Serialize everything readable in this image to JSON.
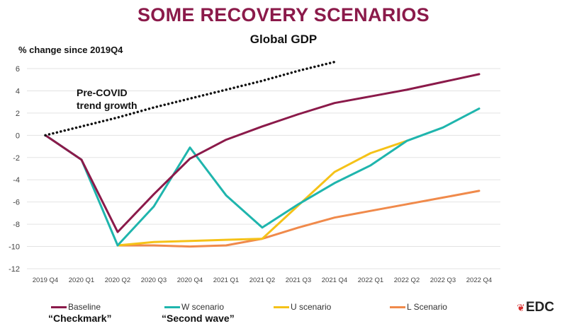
{
  "header": {
    "title": "SOME RECOVERY SCENARIOS",
    "subtitle": "Global GDP",
    "ylabel": "% change since 2019Q4"
  },
  "annotations": {
    "trend_line1": "Pre-COVID",
    "trend_line2": "trend growth"
  },
  "nicknames": {
    "baseline": "“Checkmark”",
    "w": "“Second wave”"
  },
  "logo": {
    "text": "EDC",
    "icon": "maple-leaf-icon"
  },
  "chart_data": {
    "type": "line",
    "title": "Global GDP",
    "ylabel": "% change since 2019Q4",
    "xlabel": "",
    "ylim": [
      -12,
      6
    ],
    "yticks": [
      -12,
      -10,
      -8,
      -6,
      -4,
      -2,
      0,
      2,
      4,
      6
    ],
    "grid": true,
    "legend_position": "bottom",
    "categories": [
      "2019 Q4",
      "2020 Q1",
      "2020 Q2",
      "2020 Q3",
      "2020 Q4",
      "2021 Q1",
      "2021 Q2",
      "2021 Q3",
      "2021 Q4",
      "2022 Q1",
      "2022 Q2",
      "2022 Q3",
      "2022 Q4"
    ],
    "series": [
      {
        "name": "Baseline",
        "color": "#8b1a4a",
        "style": "solid",
        "values": [
          0,
          -2.2,
          -8.7,
          -5.3,
          -2.1,
          -0.4,
          0.8,
          1.9,
          2.9,
          3.5,
          4.1,
          4.8,
          5.5
        ]
      },
      {
        "name": "W scenario",
        "color": "#1fb5ad",
        "style": "solid",
        "values": [
          0,
          -2.2,
          -9.9,
          -6.4,
          -1.1,
          -5.4,
          -8.3,
          -6.2,
          -4.3,
          -2.7,
          -0.5,
          0.7,
          2.4
        ]
      },
      {
        "name": "U scenario",
        "color": "#f5c218",
        "style": "solid",
        "values": [
          null,
          null,
          -9.9,
          -9.6,
          -9.5,
          -9.4,
          -9.3,
          -6.3,
          -3.3,
          -1.6,
          -0.5,
          null,
          null
        ]
      },
      {
        "name": "L Scenario",
        "color": "#f08a4b",
        "style": "solid",
        "values": [
          null,
          null,
          -9.9,
          -9.9,
          -10.0,
          -9.9,
          -9.3,
          -8.3,
          -7.4,
          -6.8,
          -6.2,
          -5.6,
          -5.0
        ]
      },
      {
        "name": "",
        "color": "#111111",
        "style": "dotted",
        "values": [
          0,
          0.8,
          1.6,
          2.5,
          3.3,
          4.1,
          4.9,
          5.8,
          6.6,
          null,
          null,
          null,
          null
        ]
      }
    ]
  }
}
